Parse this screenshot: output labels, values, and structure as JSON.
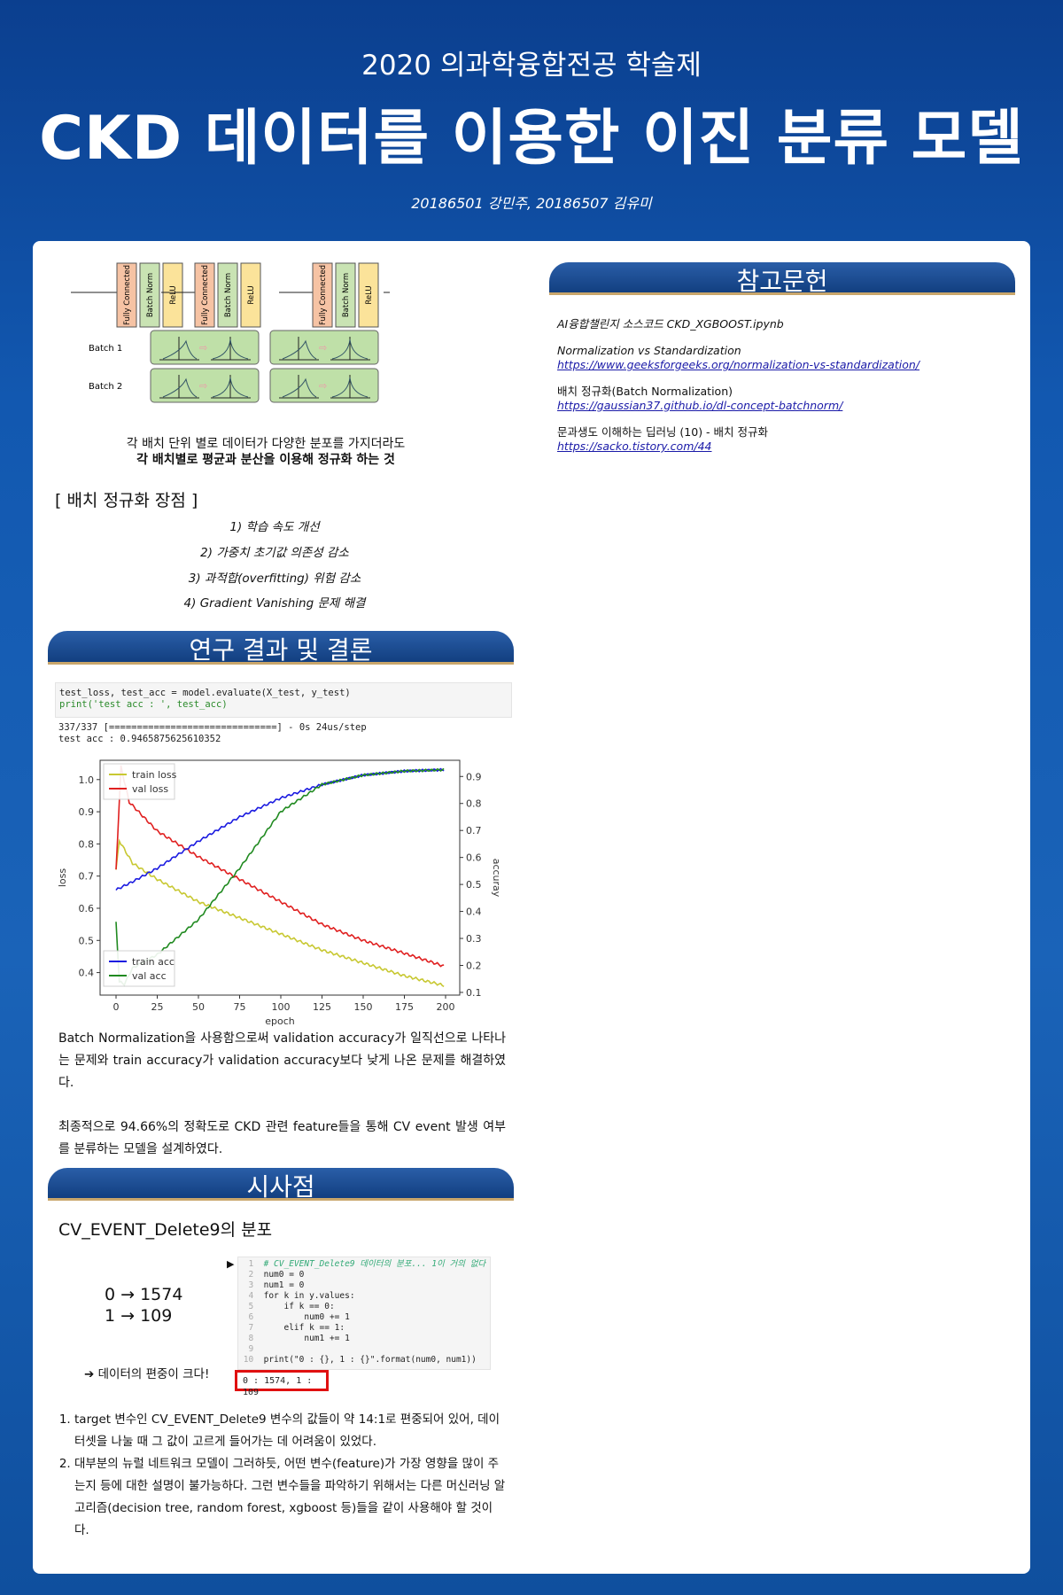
{
  "header": {
    "subtitle": "2020 의과학융합전공 학술제",
    "title": "CKD 데이터를 이용한 이진 분류 모델",
    "authors": "20186501 강민주, 20186507 김유미"
  },
  "diagram": {
    "blocks": [
      "Fully Connected",
      "Batch Norm",
      "ReLU"
    ],
    "batch_labels": [
      "Batch 1",
      "Batch 2"
    ],
    "caption1": "각 배치 단위 별로 데이터가 다양한 분포를 가지더라도",
    "caption2": "각 배치별로 평균과 분산을 이용해 정규화 하는 것"
  },
  "advantages": {
    "title": "[ 배치 정규화 장점 ]",
    "items": [
      "1) 학습 속도 개선",
      "2) 가중치 초기값 의존성 감소",
      "3) 과적합(overfitting) 위험 감소",
      "4) Gradient Vanishing 문제 해결"
    ]
  },
  "results": {
    "title": "연구 결과 및 결론",
    "code": [
      "test_loss, test_acc = model.evaluate(X_test, y_test)",
      "print('test acc : ', test_acc)"
    ],
    "output": [
      "337/337 [==============================] - 0s 24us/step",
      "test acc :  0.9465875625610352"
    ],
    "para1": "Batch Normalization을 사용함으로써 validation accuracy가 일직선으로 나타나는 문제와 train accuracy가 validation accuracy보다 낮게 나온 문제를 해결하였다.",
    "para2": "최종적으로 94.66%의 정확도로 CKD 관련 feature들을 통해 CV event 발생 여부를 분류하는 모델을 설계하였다."
  },
  "chart_data": {
    "type": "line",
    "xlabel": "epoch",
    "ylabel": "loss",
    "y2label": "accuray",
    "xlim": [
      0,
      200
    ],
    "ylim": [
      0.33,
      1.06
    ],
    "y2lim": [
      0.09,
      0.96
    ],
    "xticks": [
      0,
      25,
      50,
      75,
      100,
      125,
      150,
      175,
      200
    ],
    "yticks": [
      0.4,
      0.5,
      0.6,
      0.7,
      0.8,
      0.9,
      1.0
    ],
    "y2ticks": [
      0.1,
      0.2,
      0.3,
      0.4,
      0.5,
      0.6,
      0.7,
      0.8,
      0.9
    ],
    "series": [
      {
        "name": "train loss",
        "axis": "left",
        "color": "#c8c832",
        "x": [
          0,
          2,
          10,
          25,
          50,
          75,
          100,
          125,
          150,
          175,
          199
        ],
        "y": [
          0.72,
          0.81,
          0.74,
          0.69,
          0.62,
          0.57,
          0.52,
          0.47,
          0.43,
          0.39,
          0.36
        ]
      },
      {
        "name": "val loss",
        "axis": "left",
        "color": "#e02020",
        "x": [
          0,
          3,
          8,
          25,
          50,
          75,
          100,
          125,
          150,
          175,
          199
        ],
        "y": [
          0.72,
          1.04,
          0.93,
          0.84,
          0.76,
          0.69,
          0.62,
          0.55,
          0.5,
          0.46,
          0.42
        ]
      },
      {
        "name": "train acc",
        "axis": "right",
        "color": "#1a1ae0",
        "x": [
          0,
          10,
          25,
          50,
          75,
          100,
          125,
          150,
          175,
          199
        ],
        "y": [
          0.48,
          0.51,
          0.56,
          0.66,
          0.75,
          0.82,
          0.87,
          0.905,
          0.92,
          0.925
        ]
      },
      {
        "name": "val acc",
        "axis": "right",
        "color": "#208a20",
        "x": [
          0,
          2,
          5,
          10,
          25,
          50,
          75,
          100,
          125,
          150,
          175,
          199
        ],
        "y": [
          0.36,
          0.14,
          0.13,
          0.19,
          0.24,
          0.37,
          0.56,
          0.77,
          0.87,
          0.905,
          0.92,
          0.925
        ]
      }
    ],
    "legend": "upper-left / lower-left"
  },
  "implications": {
    "title": "시사점",
    "subtitle": "CV_EVENT_Delete9의 분포",
    "count0": "0 → 1574",
    "count1": "1 → 109",
    "note": "➔ 데이터의 편중이 크다!",
    "code": [
      "# CV_EVENT_Delete9 데이터의 분포... 1이 거의 없다",
      "num0 = 0",
      "num1 = 0",
      "for k in y.values:",
      "    if k == 0:",
      "        num0 += 1",
      "    elif k == 1:",
      "        num1 += 1",
      "",
      "print(\"0 : {}, 1 : {}\".format(num0, num1))"
    ],
    "output": "0 : 1574, 1 : 109",
    "list": [
      "target 변수인 CV_EVENT_Delete9 변수의 값들이 약 14:1로 편중되어 있어, 데이터셋을 나눌 때 그 값이 고르게 들어가는 데 어려움이 있었다.",
      "대부분의 뉴럴 네트워크 모델이 그러하듯, 어떤 변수(feature)가 가장 영향을 많이 주는지 등에 대한 설명이 불가능하다. 그런 변수들을 파악하기 위해서는 다른 머신러닝 알고리즘(decision tree, random forest, xgboost 등)들을 같이 사용해야 할 것이다."
    ]
  },
  "references": {
    "title": "참고문헌",
    "items": [
      {
        "text": "AI융합챌린지 소스코드 CKD_XGBOOST.ipynb",
        "link": ""
      },
      {
        "text": "Normalization vs Standardization",
        "link": "https://www.geeksforgeeks.org/normalization-vs-standardization/"
      },
      {
        "text": "배치 정규화(Batch Normalization)",
        "link": "https://gaussian37.github.io/dl-concept-batchnorm/"
      },
      {
        "text": "문과생도 이해하는 딥러닝 (10) - 배치 정규화",
        "link": "https://sacko.tistory.com/44"
      }
    ]
  }
}
